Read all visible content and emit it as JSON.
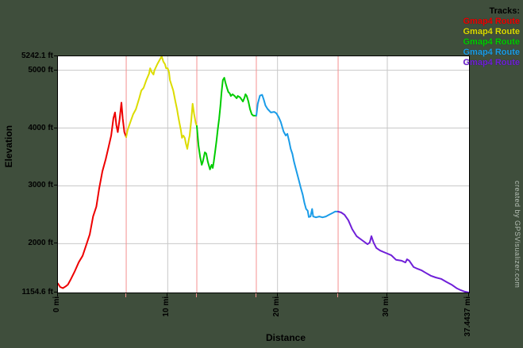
{
  "app": {
    "watermark": "created by GPSVisualizer.com",
    "background_color": "#3f4e3c"
  },
  "legend": {
    "title": "Tracks:",
    "entries": [
      {
        "label": "Gmap4 Route",
        "color": "#ee0000"
      },
      {
        "label": "Gmap4 Route",
        "color": "#dcdc00"
      },
      {
        "label": "Gmap4 Route",
        "color": "#00cc00"
      },
      {
        "label": "Gmap4 Route",
        "color": "#1a9ce8"
      },
      {
        "label": "Gmap4 Route",
        "color": "#6f1fd8"
      }
    ]
  },
  "chart_data": {
    "type": "line",
    "title": "",
    "xlabel": "Distance",
    "ylabel": "Elevation",
    "x_unit": "mi",
    "y_unit": "ft",
    "xlim": [
      0,
      37.4437
    ],
    "ylim": [
      1154.6,
      5242.1
    ],
    "grid": true,
    "y_axis_labels": [
      {
        "text": "5242.1 ft",
        "value": 5242.1
      },
      {
        "text": "5000 ft",
        "value": 5000
      },
      {
        "text": "4000 ft",
        "value": 4000
      },
      {
        "text": "3000 ft",
        "value": 3000
      },
      {
        "text": "2000 ft",
        "value": 2000
      },
      {
        "text": "1154.6 ft",
        "value": 1154.6
      }
    ],
    "x_axis_labels": [
      {
        "text": "0 mi",
        "value": 0
      },
      {
        "text": "10 mi",
        "value": 10
      },
      {
        "text": "20 mi",
        "value": 20
      },
      {
        "text": "30 mi",
        "value": 30
      },
      {
        "text": "37.4437 mi",
        "value": 37.4437
      }
    ],
    "y_gridlines": [
      5000,
      4000,
      3000,
      2000
    ],
    "x_gridlines": [
      10,
      20,
      30
    ],
    "track_split_lines_mi": [
      6.22,
      12.65,
      18.07,
      25.52
    ],
    "gridline_color": "#c8c8c8",
    "split_line_color": "#f49090",
    "series": [
      {
        "id": "track-1",
        "name": "Gmap4 Route",
        "color": "#ee0000",
        "points": [
          [
            0.0,
            1310
          ],
          [
            0.2,
            1250
          ],
          [
            0.45,
            1230
          ],
          [
            0.7,
            1260
          ],
          [
            0.9,
            1290
          ],
          [
            1.15,
            1375
          ],
          [
            1.5,
            1510
          ],
          [
            1.9,
            1680
          ],
          [
            2.25,
            1790
          ],
          [
            2.6,
            1990
          ],
          [
            2.9,
            2160
          ],
          [
            3.2,
            2470
          ],
          [
            3.5,
            2640
          ],
          [
            3.75,
            2950
          ],
          [
            4.05,
            3250
          ],
          [
            4.35,
            3460
          ],
          [
            4.6,
            3660
          ],
          [
            4.85,
            3870
          ],
          [
            5.05,
            4170
          ],
          [
            5.2,
            4270
          ],
          [
            5.32,
            4050
          ],
          [
            5.45,
            3930
          ],
          [
            5.62,
            4150
          ],
          [
            5.78,
            4440
          ],
          [
            5.9,
            4170
          ],
          [
            6.05,
            3930
          ],
          [
            6.22,
            3845
          ]
        ]
      },
      {
        "id": "track-2",
        "name": "Gmap4 Route",
        "color": "#dcdc00",
        "points": [
          [
            6.22,
            3845
          ],
          [
            6.35,
            3965
          ],
          [
            6.6,
            4105
          ],
          [
            6.85,
            4240
          ],
          [
            7.1,
            4325
          ],
          [
            7.4,
            4515
          ],
          [
            7.6,
            4650
          ],
          [
            7.8,
            4695
          ],
          [
            8.05,
            4830
          ],
          [
            8.3,
            4940
          ],
          [
            8.4,
            5035
          ],
          [
            8.55,
            4965
          ],
          [
            8.7,
            4925
          ],
          [
            8.78,
            4995
          ],
          [
            9.05,
            5105
          ],
          [
            9.25,
            5175
          ],
          [
            9.45,
            5242
          ],
          [
            9.6,
            5150
          ],
          [
            9.75,
            5105
          ],
          [
            9.85,
            5035
          ],
          [
            10.0,
            5035
          ],
          [
            10.12,
            4965
          ],
          [
            10.2,
            4830
          ],
          [
            10.5,
            4650
          ],
          [
            10.7,
            4460
          ],
          [
            10.85,
            4325
          ],
          [
            10.92,
            4240
          ],
          [
            11.05,
            4105
          ],
          [
            11.2,
            3965
          ],
          [
            11.3,
            3830
          ],
          [
            11.42,
            3870
          ],
          [
            11.55,
            3830
          ],
          [
            11.65,
            3735
          ],
          [
            11.78,
            3640
          ],
          [
            11.92,
            3800
          ],
          [
            12.0,
            3870
          ],
          [
            12.15,
            4150
          ],
          [
            12.27,
            4420
          ],
          [
            12.4,
            4250
          ],
          [
            12.55,
            4090
          ],
          [
            12.65,
            4035
          ]
        ]
      },
      {
        "id": "track-3",
        "name": "Gmap4 Route",
        "color": "#00cc00",
        "points": [
          [
            12.65,
            4035
          ],
          [
            12.8,
            3700
          ],
          [
            12.95,
            3500
          ],
          [
            13.1,
            3365
          ],
          [
            13.2,
            3420
          ],
          [
            13.38,
            3580
          ],
          [
            13.5,
            3560
          ],
          [
            13.65,
            3420
          ],
          [
            13.85,
            3285
          ],
          [
            14.0,
            3365
          ],
          [
            14.1,
            3310
          ],
          [
            14.2,
            3420
          ],
          [
            14.32,
            3595
          ],
          [
            14.45,
            3790
          ],
          [
            14.55,
            3965
          ],
          [
            14.68,
            4160
          ],
          [
            14.8,
            4380
          ],
          [
            14.9,
            4610
          ],
          [
            15.02,
            4830
          ],
          [
            15.15,
            4870
          ],
          [
            15.25,
            4790
          ],
          [
            15.4,
            4695
          ],
          [
            15.52,
            4625
          ],
          [
            15.65,
            4600
          ],
          [
            15.75,
            4555
          ],
          [
            15.9,
            4585
          ],
          [
            16.1,
            4555
          ],
          [
            16.28,
            4515
          ],
          [
            16.38,
            4555
          ],
          [
            16.6,
            4530
          ],
          [
            16.85,
            4460
          ],
          [
            17.0,
            4530
          ],
          [
            17.08,
            4585
          ],
          [
            17.2,
            4555
          ],
          [
            17.35,
            4460
          ],
          [
            17.5,
            4325
          ],
          [
            17.65,
            4240
          ],
          [
            17.8,
            4215
          ],
          [
            18.07,
            4215
          ]
        ]
      },
      {
        "id": "track-4",
        "name": "Gmap4 Route",
        "color": "#1a9ce8",
        "points": [
          [
            18.07,
            4215
          ],
          [
            18.2,
            4420
          ],
          [
            18.4,
            4560
          ],
          [
            18.6,
            4575
          ],
          [
            18.75,
            4490
          ],
          [
            18.9,
            4390
          ],
          [
            19.1,
            4330
          ],
          [
            19.4,
            4270
          ],
          [
            19.7,
            4280
          ],
          [
            19.9,
            4255
          ],
          [
            20.1,
            4190
          ],
          [
            20.3,
            4105
          ],
          [
            20.55,
            3940
          ],
          [
            20.75,
            3870
          ],
          [
            20.9,
            3900
          ],
          [
            21.05,
            3780
          ],
          [
            21.2,
            3640
          ],
          [
            21.35,
            3555
          ],
          [
            21.5,
            3420
          ],
          [
            21.65,
            3310
          ],
          [
            21.8,
            3200
          ],
          [
            21.95,
            3090
          ],
          [
            22.1,
            2980
          ],
          [
            22.3,
            2845
          ],
          [
            22.45,
            2705
          ],
          [
            22.6,
            2600
          ],
          [
            22.75,
            2570
          ],
          [
            22.85,
            2460
          ],
          [
            23.0,
            2470
          ],
          [
            23.15,
            2600
          ],
          [
            23.25,
            2470
          ],
          [
            23.5,
            2455
          ],
          [
            23.8,
            2470
          ],
          [
            24.1,
            2455
          ],
          [
            24.4,
            2470
          ],
          [
            24.7,
            2500
          ],
          [
            25.0,
            2530
          ],
          [
            25.25,
            2555
          ],
          [
            25.52,
            2555
          ]
        ]
      },
      {
        "id": "track-5",
        "name": "Gmap4 Route",
        "color": "#6f1fd8",
        "points": [
          [
            25.52,
            2555
          ],
          [
            25.8,
            2540
          ],
          [
            26.1,
            2500
          ],
          [
            26.45,
            2405
          ],
          [
            26.8,
            2250
          ],
          [
            27.2,
            2130
          ],
          [
            27.7,
            2060
          ],
          [
            28.2,
            1990
          ],
          [
            28.4,
            2020
          ],
          [
            28.55,
            2130
          ],
          [
            28.75,
            2020
          ],
          [
            29.0,
            1925
          ],
          [
            29.35,
            1880
          ],
          [
            29.85,
            1840
          ],
          [
            30.35,
            1800
          ],
          [
            30.8,
            1720
          ],
          [
            31.3,
            1705
          ],
          [
            31.65,
            1675
          ],
          [
            31.8,
            1730
          ],
          [
            32.0,
            1705
          ],
          [
            32.4,
            1595
          ],
          [
            32.75,
            1565
          ],
          [
            33.1,
            1540
          ],
          [
            33.45,
            1500
          ],
          [
            33.95,
            1445
          ],
          [
            34.4,
            1415
          ],
          [
            34.9,
            1390
          ],
          [
            35.4,
            1335
          ],
          [
            35.85,
            1290
          ],
          [
            36.35,
            1225
          ],
          [
            36.7,
            1195
          ],
          [
            37.05,
            1170
          ],
          [
            37.4437,
            1154.6
          ]
        ]
      }
    ]
  }
}
